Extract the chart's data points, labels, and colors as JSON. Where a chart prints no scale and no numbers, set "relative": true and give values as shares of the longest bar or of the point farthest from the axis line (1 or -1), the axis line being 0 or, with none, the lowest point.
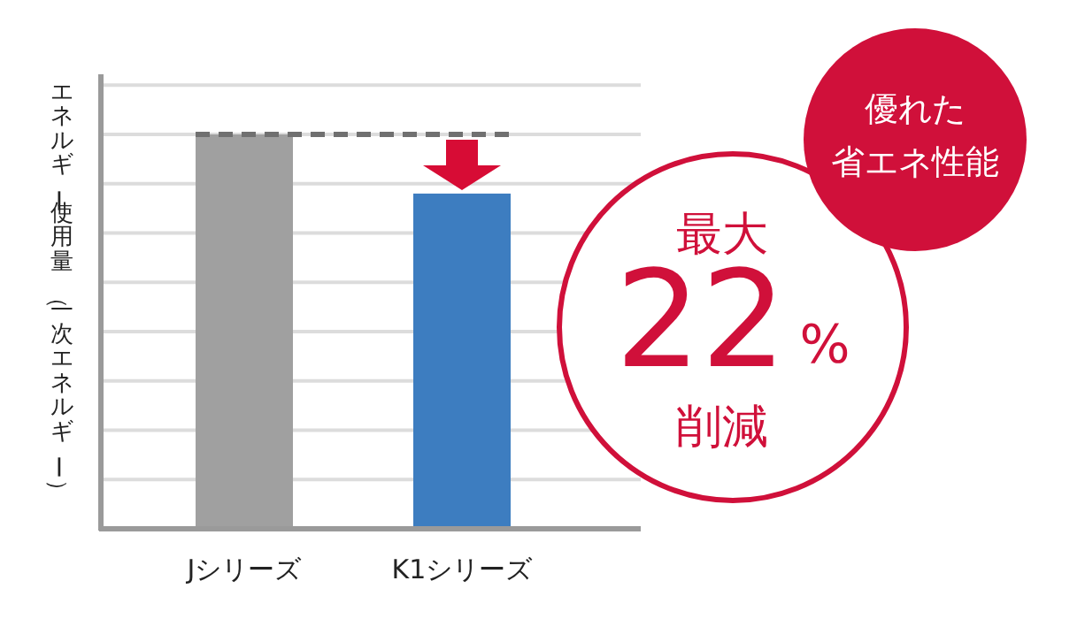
{
  "chart_data": {
    "type": "bar",
    "ylabel": "エネルギー使用量（一次エネルギー）",
    "categories": [
      "Jシリーズ",
      "K1シリーズ"
    ],
    "values": [
      1,
      0.85
    ],
    "colors": [
      "#a0a0a0",
      "#3d7dc0"
    ],
    "relative": true,
    "grid": true,
    "ref_lines": [
      {
        "axis": "y",
        "value": 1,
        "color": "#707070",
        "line_style": "dashed"
      }
    ],
    "annotations": [
      "優れた",
      "省エネ性能",
      "最大",
      "22",
      "%",
      "削減"
    ]
  }
}
